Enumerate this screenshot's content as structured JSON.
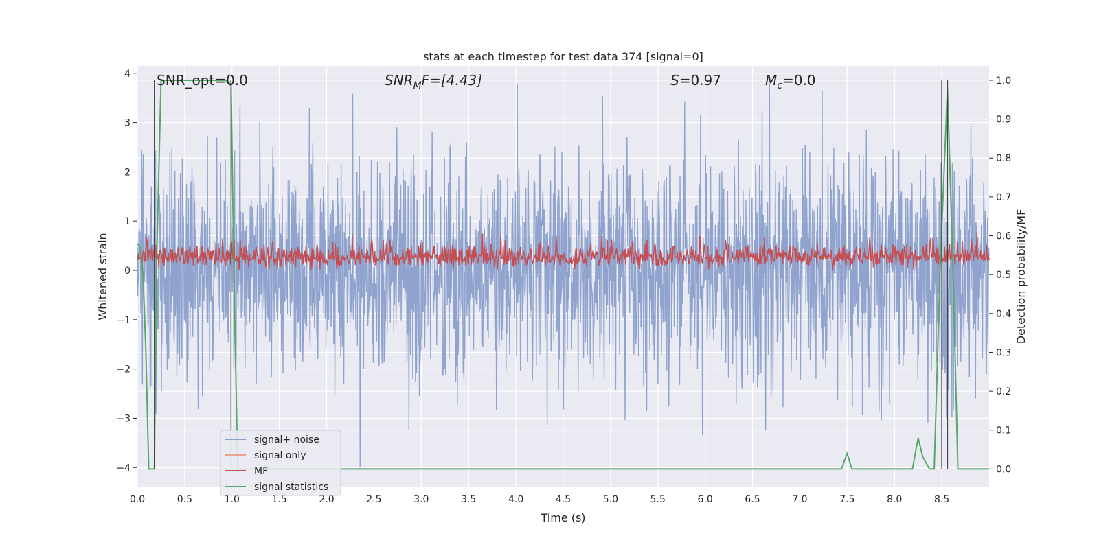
{
  "chart_data": {
    "type": "line",
    "title": "stats at each timestep for test data 374 [signal=0]",
    "xlabel": "Time (s)",
    "ylabel": "Whitened strain",
    "y2label": "Detection probability/MF",
    "xlim": [
      0.0,
      9.0
    ],
    "ylim": [
      -4.4,
      4.15
    ],
    "y2lim": [
      -0.047,
      1.037
    ],
    "xticks": [
      "0.0",
      "0.5",
      "1.0",
      "1.5",
      "2.0",
      "2.5",
      "3.0",
      "3.5",
      "4.0",
      "4.5",
      "5.0",
      "5.5",
      "6.0",
      "6.5",
      "7.0",
      "7.5",
      "8.0",
      "8.5"
    ],
    "yticks": [
      "−4",
      "−3",
      "−2",
      "−1",
      "0",
      "1",
      "2",
      "3",
      "4"
    ],
    "y2ticks": [
      "0.0",
      "0.1",
      "0.2",
      "0.3",
      "0.4",
      "0.5",
      "0.6",
      "0.7",
      "0.8",
      "0.9",
      "1.0"
    ],
    "grid": true,
    "legend_placement": "lower-left",
    "annotations": {
      "snr_opt": "SNR_opt=0.0",
      "snr_mf_prefix": "SNR",
      "snr_mf_sub": "M",
      "snr_mf_suffix": "F=[4.43]",
      "s_prefix": "S",
      "s_suffix": "=0.97",
      "mc_prefix": "M",
      "mc_sub": "c",
      "mc_suffix": "=0.0"
    },
    "vlines_x": [
      0.18,
      0.99,
      8.5,
      8.56
    ],
    "series": [
      {
        "name": "signal+ noise",
        "color": "#8a9fcb",
        "axis": "left",
        "kind": "noise",
        "x_range": [
          0.0,
          9.0
        ],
        "amplitude_range": [
          -4.0,
          3.8
        ]
      },
      {
        "name": "signal only",
        "color": "#e8a38a",
        "axis": "left",
        "x": [],
        "y": []
      },
      {
        "name": "MF",
        "color": "#c44e52",
        "axis": "left",
        "kind": "noise",
        "x_range": [
          0.0,
          9.0
        ],
        "amplitude_range": [
          0.0,
          0.9
        ]
      },
      {
        "name": "signal statistics",
        "color": "#55a868",
        "axis": "right",
        "x": [
          0.0,
          0.03,
          0.06,
          0.09,
          0.12,
          0.18,
          0.2,
          0.25,
          0.5,
          0.75,
          0.93,
          0.99,
          1.02,
          1.06,
          1.12,
          1.3,
          7.0,
          7.44,
          7.5,
          7.55,
          8.0,
          8.19,
          8.25,
          8.3,
          8.37,
          8.42,
          8.48,
          8.56,
          8.62,
          8.67,
          9.0
        ],
        "y": [
          0.58,
          0.57,
          0.5,
          0.3,
          0.0,
          0.0,
          0.5,
          1.0,
          1.0,
          1.0,
          1.0,
          0.99,
          0.5,
          0.0,
          0.0,
          0.0,
          0.0,
          0.0,
          0.04,
          0.0,
          0.0,
          0.0,
          0.08,
          0.03,
          0.0,
          0.0,
          0.5,
          0.98,
          0.5,
          0.0,
          0.0
        ]
      }
    ]
  }
}
